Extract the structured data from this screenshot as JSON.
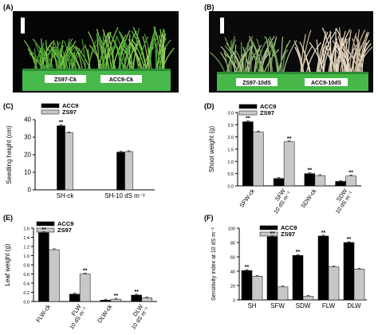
{
  "panel_labels": {
    "a": "(A)",
    "b": "(B)",
    "c": "(C)",
    "d": "(D)",
    "e": "(E)",
    "f": "(F)"
  },
  "photos": {
    "a": {
      "left_tag": "ZS97-Ck",
      "right_tag": "ACC9-Ck",
      "bg": "#050505",
      "tray": "#47b84a"
    },
    "b": {
      "left_tag": "ZS97-10dS",
      "right_tag": "ACC9-10dS",
      "bg": "#0a0a0a",
      "tray": "#46b848"
    }
  },
  "legend": {
    "acc9": "ACC9",
    "zs97": "ZS97"
  },
  "colors": {
    "acc9": "#000000",
    "zs97": "#c8c8c8"
  },
  "chart_data": [
    {
      "id": "C",
      "type": "bar",
      "ylabel": "Seedling height (cm)",
      "ylim": [
        0,
        40
      ],
      "yticks": [
        0,
        10,
        20,
        30,
        40
      ],
      "categories": [
        "SH-ck",
        "SH-10 dS m⁻¹"
      ],
      "rotated": false,
      "series": [
        {
          "name": "ACC9",
          "values": [
            36.5,
            21.5
          ]
        },
        {
          "name": "ZS97",
          "values": [
            32.5,
            21.8
          ]
        }
      ],
      "sig": [
        "**",
        null
      ]
    },
    {
      "id": "D",
      "type": "bar",
      "ylabel": "Shoot weight (g)",
      "ylim": [
        0,
        3.0
      ],
      "yticks": [
        0.0,
        0.5,
        1.0,
        1.5,
        2.0,
        2.5,
        3.0
      ],
      "categories": [
        "SFW-ck",
        "SFW 10 dS m⁻¹",
        "SDW-ck",
        "SDW 10 dS m⁻¹"
      ],
      "rotated": true,
      "series": [
        {
          "name": "ACC9",
          "values": [
            2.62,
            0.3,
            0.5,
            0.18
          ]
        },
        {
          "name": "ZS97",
          "values": [
            2.2,
            1.8,
            0.42,
            0.4
          ]
        }
      ],
      "sig": [
        "**",
        "**",
        "**",
        "**"
      ]
    },
    {
      "id": "E",
      "type": "bar",
      "ylabel": "Leaf weight (g)",
      "ylim": [
        0,
        1.6
      ],
      "yticks": [
        0.0,
        0.2,
        0.4,
        0.6,
        0.8,
        1.0,
        1.2,
        1.4,
        1.6
      ],
      "categories": [
        "FLW-ck",
        "FLW 10 dS m⁻¹",
        "DLW-ck",
        "DLW 10 dS m⁻¹"
      ],
      "rotated": true,
      "series": [
        {
          "name": "ACC9",
          "values": [
            1.5,
            0.16,
            0.03,
            0.14
          ]
        },
        {
          "name": "ZS97",
          "values": [
            1.13,
            0.6,
            0.05,
            0.08
          ]
        }
      ],
      "sig": [
        "**",
        "**",
        "**",
        "**"
      ]
    },
    {
      "id": "F",
      "type": "bar",
      "ylabel": "Sensitivity index at 10 dS m⁻¹",
      "ylim": [
        0,
        100
      ],
      "yticks": [
        0,
        20,
        40,
        60,
        80,
        100
      ],
      "categories": [
        "SH",
        "SFW",
        "SDW",
        "FLW",
        "DLW"
      ],
      "rotated": false,
      "series": [
        {
          "name": "ACC9",
          "values": [
            41,
            88,
            62,
            89,
            80
          ]
        },
        {
          "name": "ZS97",
          "values": [
            33,
            18,
            5,
            46,
            43
          ]
        }
      ],
      "sig": [
        "**",
        "**",
        "**",
        "**",
        "**"
      ]
    }
  ]
}
